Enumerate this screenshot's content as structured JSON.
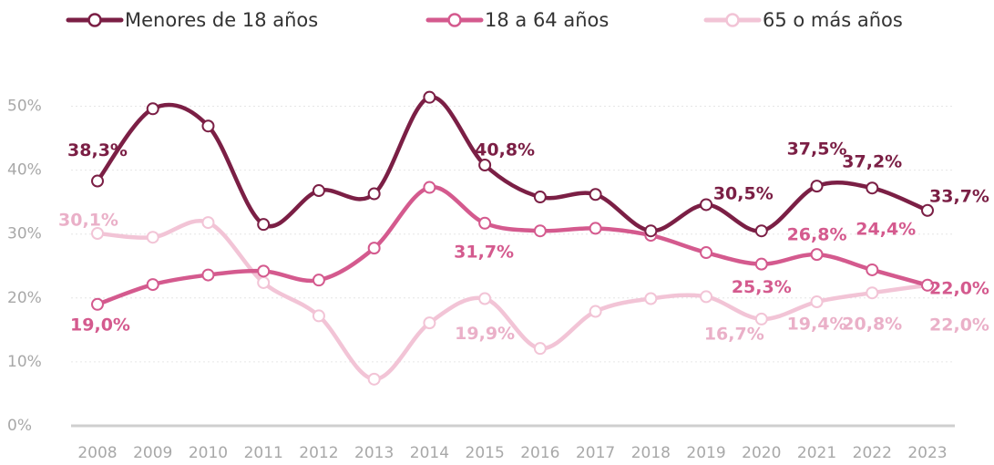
{
  "chart_data": {
    "type": "line",
    "categories": [
      "2008",
      "2009",
      "2010",
      "2011",
      "2012",
      "2013",
      "2014",
      "2015",
      "2016",
      "2017",
      "2018",
      "2019",
      "2020",
      "2021",
      "2022",
      "2023"
    ],
    "series": [
      {
        "name": "Menores de 18 años",
        "color": "#7b1f45",
        "values": [
          38.3,
          49.6,
          46.9,
          31.5,
          36.8,
          36.3,
          51.4,
          40.8,
          35.8,
          36.2,
          30.5,
          34.6,
          30.5,
          37.5,
          37.2,
          33.7
        ],
        "value_labels": [
          "38,3%",
          null,
          null,
          null,
          null,
          null,
          null,
          "40,8%",
          null,
          null,
          null,
          null,
          "30,5%",
          "37,5%",
          "37,2%",
          "33,7%"
        ]
      },
      {
        "name": "18 a 64 años",
        "color": "#d45a8e",
        "values": [
          19.0,
          22.1,
          23.6,
          24.2,
          22.8,
          27.8,
          37.3,
          31.7,
          30.5,
          30.9,
          29.8,
          27.1,
          25.3,
          26.8,
          24.4,
          22.0
        ],
        "value_labels": [
          "19,0%",
          null,
          null,
          null,
          null,
          null,
          null,
          "31,7%",
          null,
          null,
          null,
          null,
          "25,3%",
          "26,8%",
          "24,4%",
          "22,0%"
        ]
      },
      {
        "name": "65 o más años",
        "color": "#f2c4d6",
        "values": [
          30.1,
          29.5,
          31.8,
          22.4,
          17.2,
          7.3,
          16.1,
          19.9,
          12.1,
          17.9,
          19.9,
          20.2,
          16.7,
          19.4,
          20.8,
          22.0
        ],
        "value_labels": [
          "30,1%",
          null,
          null,
          null,
          null,
          null,
          null,
          "19,9%",
          null,
          null,
          null,
          null,
          "16,7%",
          "19,4%",
          "20,8%",
          "22,0%"
        ]
      }
    ],
    "ylim": [
      0,
      50
    ],
    "yticks": [
      {
        "value": 0,
        "label": "0%"
      },
      {
        "value": 10,
        "label": "10%"
      },
      {
        "value": 20,
        "label": "20%"
      },
      {
        "value": 30,
        "label": "30%"
      },
      {
        "value": 40,
        "label": "40%"
      },
      {
        "value": 50,
        "label": "50%"
      }
    ],
    "grid": true,
    "legend": "top"
  }
}
